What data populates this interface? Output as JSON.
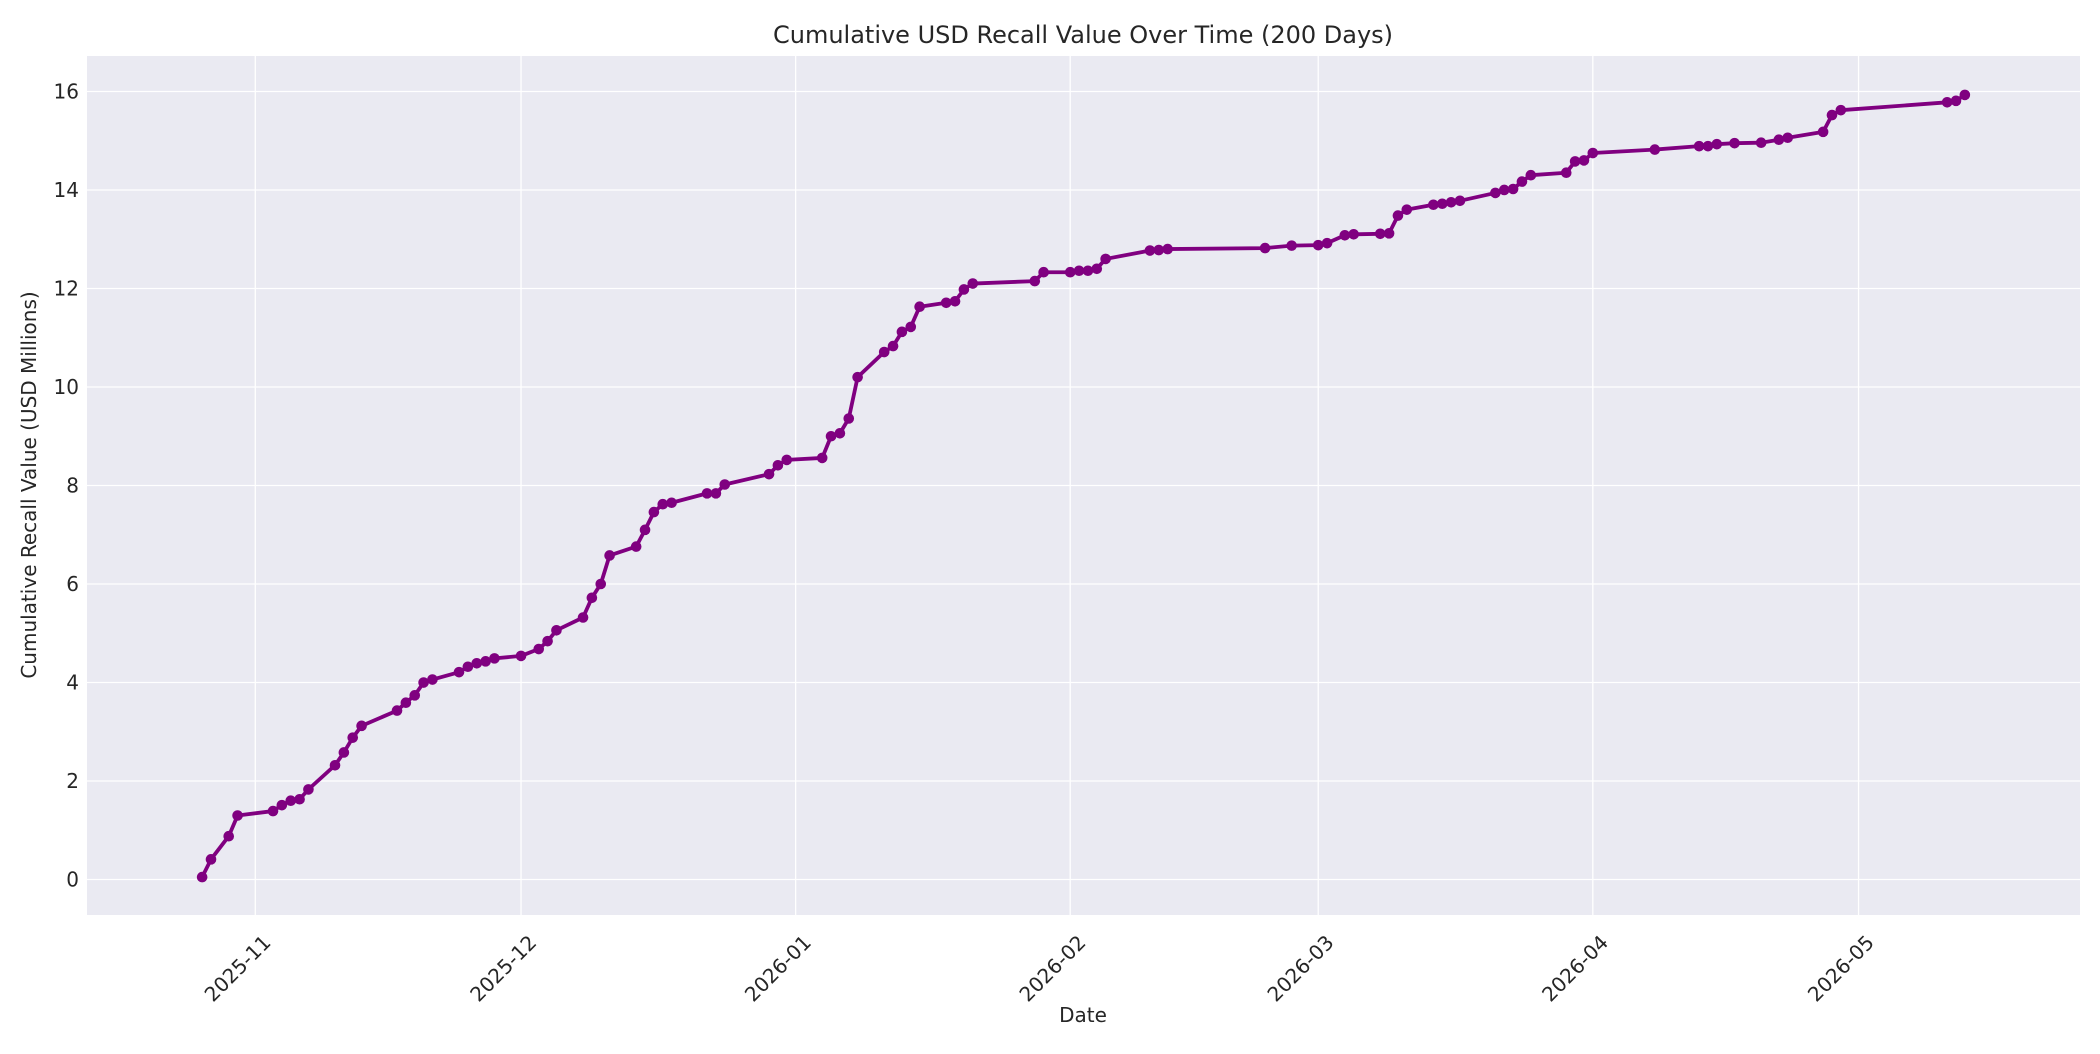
{
  "chart_data": {
    "type": "line",
    "title": "Cumulative USD Recall Value Over Time (200 Days)",
    "xlabel": "Date",
    "ylabel": "Cumulative Recall Value (USD Millions)",
    "xlim": [
      "2025-10-13",
      "2026-05-26"
    ],
    "ylim": [
      -0.72,
      16.72
    ],
    "x_ticks": [
      "2025-11-01",
      "2025-12-01",
      "2026-01-01",
      "2026-02-01",
      "2026-03-01",
      "2026-04-01",
      "2026-05-01"
    ],
    "x_tick_labels": [
      "2025-11",
      "2025-12",
      "2026-01",
      "2026-02",
      "2026-03",
      "2026-04",
      "2026-05"
    ],
    "y_ticks": [
      0,
      2,
      4,
      6,
      8,
      10,
      12,
      14,
      16
    ],
    "y_tick_labels": [
      "0",
      "2",
      "4",
      "6",
      "8",
      "10",
      "12",
      "14",
      "16"
    ],
    "grid": true,
    "colors": {
      "line": "#800080",
      "plot_background": "#eaeaf2",
      "grid": "#ffffff",
      "page_background": "#ffffff"
    },
    "series": [
      {
        "x": [
          "2025-10-26",
          "2025-10-27",
          "2025-10-29",
          "2025-10-30",
          "2025-11-03",
          "2025-11-04",
          "2025-11-05",
          "2025-11-06",
          "2025-11-07",
          "2025-11-10",
          "2025-11-11",
          "2025-11-12",
          "2025-11-13",
          "2025-11-17",
          "2025-11-18",
          "2025-11-19",
          "2025-11-20",
          "2025-11-21",
          "2025-11-24",
          "2025-11-25",
          "2025-11-26",
          "2025-11-27",
          "2025-11-28",
          "2025-12-01",
          "2025-12-03",
          "2025-12-04",
          "2025-12-05",
          "2025-12-08",
          "2025-12-09",
          "2025-12-10",
          "2025-12-11",
          "2025-12-14",
          "2025-12-15",
          "2025-12-16",
          "2025-12-17",
          "2025-12-18",
          "2025-12-22",
          "2025-12-23",
          "2025-12-24",
          "2025-12-29",
          "2025-12-30",
          "2025-12-31",
          "2026-01-04",
          "2026-01-05",
          "2026-01-06",
          "2026-01-07",
          "2026-01-08",
          "2026-01-11",
          "2026-01-12",
          "2026-01-13",
          "2026-01-14",
          "2026-01-15",
          "2026-01-18",
          "2026-01-19",
          "2026-01-20",
          "2026-01-21",
          "2026-01-28",
          "2026-01-29",
          "2026-02-01",
          "2026-02-02",
          "2026-02-03",
          "2026-02-04",
          "2026-02-05",
          "2026-02-10",
          "2026-02-11",
          "2026-02-12",
          "2026-02-23",
          "2026-02-26",
          "2026-03-01",
          "2026-03-02",
          "2026-03-04",
          "2026-03-05",
          "2026-03-08",
          "2026-03-09",
          "2026-03-10",
          "2026-03-11",
          "2026-03-14",
          "2026-03-15",
          "2026-03-16",
          "2026-03-17",
          "2026-03-21",
          "2026-03-22",
          "2026-03-23",
          "2026-03-24",
          "2026-03-25",
          "2026-03-29",
          "2026-03-30",
          "2026-03-31",
          "2026-04-01",
          "2026-04-08",
          "2026-04-13",
          "2026-04-14",
          "2026-04-15",
          "2026-04-17",
          "2026-04-20",
          "2026-04-22",
          "2026-04-23",
          "2026-04-27",
          "2026-04-28",
          "2026-04-29",
          "2026-05-11",
          "2026-05-12",
          "2026-05-13"
        ],
        "values": [
          0.05,
          0.41,
          0.88,
          1.3,
          1.39,
          1.51,
          1.6,
          1.63,
          1.83,
          2.32,
          2.58,
          2.88,
          3.12,
          3.43,
          3.59,
          3.74,
          4.0,
          4.06,
          4.21,
          4.32,
          4.39,
          4.43,
          4.49,
          4.54,
          4.68,
          4.84,
          5.06,
          5.32,
          5.72,
          6.0,
          6.58,
          6.76,
          7.1,
          7.46,
          7.62,
          7.65,
          7.84,
          7.84,
          8.02,
          8.23,
          8.41,
          8.52,
          8.56,
          9.0,
          9.06,
          9.36,
          10.2,
          10.71,
          10.83,
          11.12,
          11.22,
          11.63,
          11.71,
          11.74,
          11.98,
          12.1,
          12.15,
          12.33,
          12.33,
          12.36,
          12.36,
          12.4,
          12.6,
          12.77,
          12.78,
          12.8,
          12.82,
          12.87,
          12.88,
          12.92,
          13.08,
          13.1,
          13.11,
          13.12,
          13.48,
          13.6,
          13.7,
          13.72,
          13.75,
          13.78,
          13.94,
          14.0,
          14.02,
          14.17,
          14.3,
          14.35,
          14.58,
          14.6,
          14.75,
          14.82,
          14.89,
          14.89,
          14.93,
          14.95,
          14.96,
          15.02,
          15.06,
          15.18,
          15.52,
          15.62,
          15.78,
          15.81,
          15.93
        ]
      }
    ]
  }
}
